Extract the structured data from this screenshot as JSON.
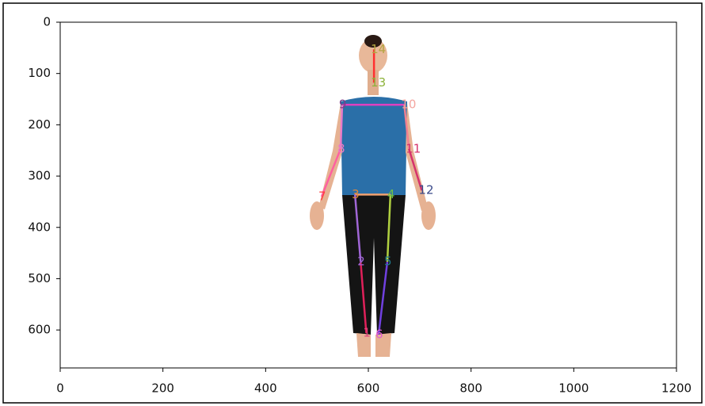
{
  "chart_data": {
    "type": "scatter",
    "xlim": [
      0,
      1200
    ],
    "ylim": [
      674,
      0
    ],
    "xticks": [
      0,
      200,
      400,
      600,
      800,
      1000,
      1200
    ],
    "yticks": [
      0,
      100,
      200,
      300,
      400,
      500,
      600
    ],
    "points": [
      {
        "label": "1",
        "x": 596,
        "y": 606,
        "color": "#e0407a"
      },
      {
        "label": "2",
        "x": 585,
        "y": 467,
        "color": "#a066d6"
      },
      {
        "label": "3",
        "x": 574,
        "y": 336,
        "color": "#e0883a"
      },
      {
        "label": "4",
        "x": 643,
        "y": 336,
        "color": "#6dbf4a"
      },
      {
        "label": "5",
        "x": 637,
        "y": 467,
        "color": "#1f7a8c"
      },
      {
        "label": "6",
        "x": 620,
        "y": 609,
        "color": "#e060d0"
      },
      {
        "label": "7",
        "x": 509,
        "y": 340,
        "color": "#ff3b3b"
      },
      {
        "label": "8",
        "x": 546,
        "y": 247,
        "color": "#e87ac8"
      },
      {
        "label": "9",
        "x": 549,
        "y": 161,
        "color": "#7d3c8c"
      },
      {
        "label": "10",
        "x": 670,
        "y": 161,
        "color": "#f4a6a0"
      },
      {
        "label": "11",
        "x": 679,
        "y": 247,
        "color": "#d6336c"
      },
      {
        "label": "12",
        "x": 704,
        "y": 328,
        "color": "#3a4a8a"
      },
      {
        "label": "13",
        "x": 611,
        "y": 118,
        "color": "#8db33a"
      },
      {
        "label": "14",
        "x": 611,
        "y": 53,
        "color": "#b5a642"
      }
    ],
    "bones": [
      {
        "from": 13,
        "to": 12,
        "color": "#ff3030"
      },
      {
        "from": 8,
        "to": 9,
        "color": "#e040c0"
      },
      {
        "from": 2,
        "to": 3,
        "color": "#f0a070"
      },
      {
        "from": 2,
        "to": 1,
        "color": "#a066d6"
      },
      {
        "from": 1,
        "to": 0,
        "color": "#e0205a"
      },
      {
        "from": 3,
        "to": 4,
        "color": "#b0d040"
      },
      {
        "from": 4,
        "to": 5,
        "color": "#7040e0"
      },
      {
        "from": 8,
        "to": 7,
        "color": "#e87ac8"
      },
      {
        "from": 7,
        "to": 6,
        "color": "#ff60a0"
      },
      {
        "from": 9,
        "to": 10,
        "color": "#f08090"
      },
      {
        "from": 10,
        "to": 11,
        "color": "#d6336c"
      }
    ]
  }
}
